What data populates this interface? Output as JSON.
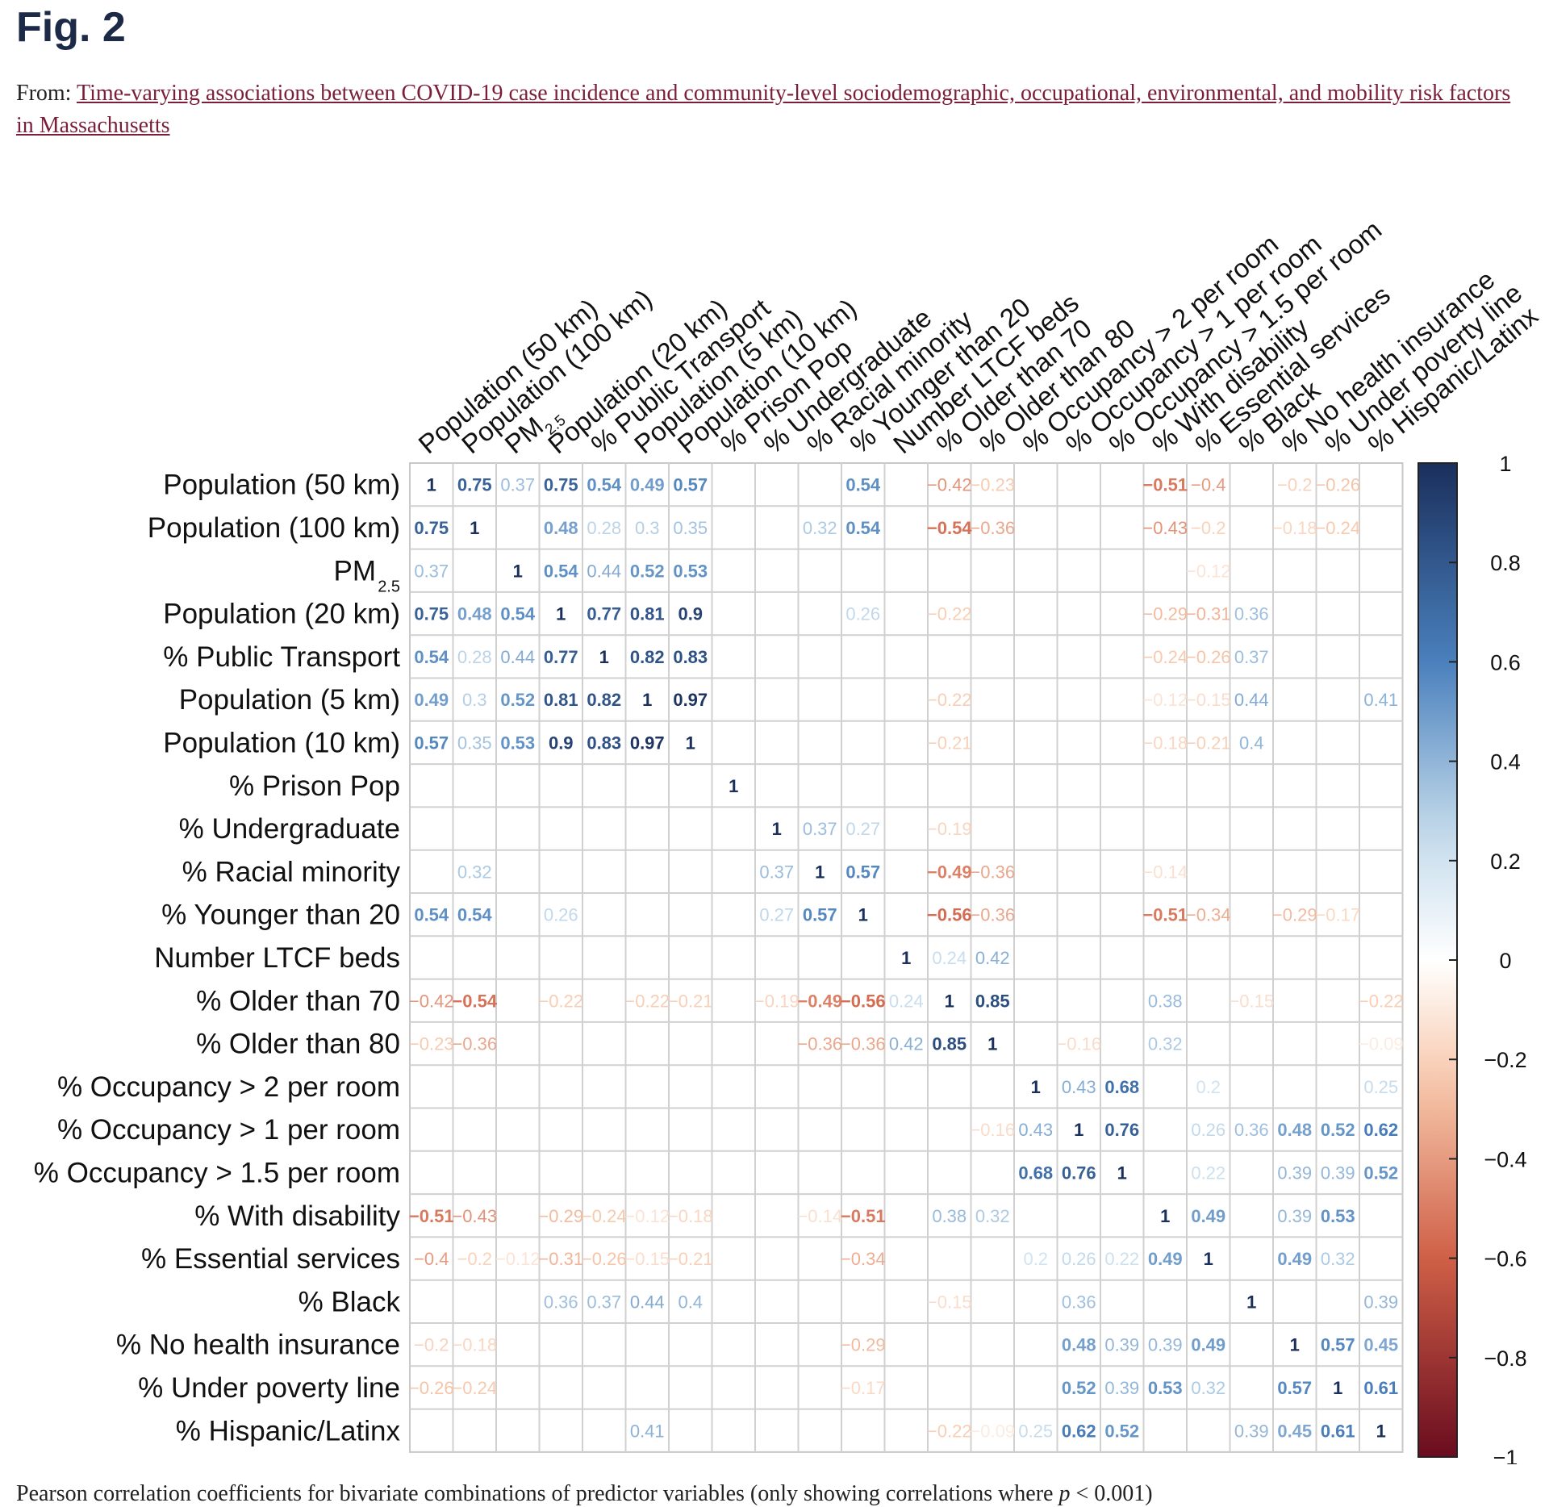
{
  "figure": {
    "title": "Fig. 2",
    "from_label": "From:",
    "article_link": "Time-varying associations between COVID-19 case incidence and community-level sociodemographic, occupational, environmental, and mobility risk factors in Massachusetts",
    "caption_pre": "Pearson correlation coefficients for bivariate combinations of predictor variables (only showing correlations where ",
    "caption_p": "p",
    "caption_post": " < 0.001)"
  },
  "chart_data": {
    "type": "heatmap",
    "variables": [
      {
        "main": "Population (50 km)",
        "sub": ""
      },
      {
        "main": "Population (100 km)",
        "sub": ""
      },
      {
        "main": "PM",
        "sub": "2.5"
      },
      {
        "main": "Population (20 km)",
        "sub": ""
      },
      {
        "main": "% Public Transport",
        "sub": ""
      },
      {
        "main": "Population (5 km)",
        "sub": ""
      },
      {
        "main": "Population (10 km)",
        "sub": ""
      },
      {
        "main": "% Prison Pop",
        "sub": ""
      },
      {
        "main": "% Undergraduate",
        "sub": ""
      },
      {
        "main": "% Racial minority",
        "sub": ""
      },
      {
        "main": "% Younger than 20",
        "sub": ""
      },
      {
        "main": "Number LTCF beds",
        "sub": ""
      },
      {
        "main": "% Older than 70",
        "sub": ""
      },
      {
        "main": "% Older than 80",
        "sub": ""
      },
      {
        "main": "% Occupancy > 2 per room",
        "sub": ""
      },
      {
        "main": "% Occupancy > 1 per room",
        "sub": ""
      },
      {
        "main": "% Occupancy > 1.5 per room",
        "sub": ""
      },
      {
        "main": "% With disability",
        "sub": ""
      },
      {
        "main": "% Essential services",
        "sub": ""
      },
      {
        "main": "% Black",
        "sub": ""
      },
      {
        "main": "% No health insurance",
        "sub": ""
      },
      {
        "main": "% Under poverty line",
        "sub": ""
      },
      {
        "main": "% Hispanic/Latinx",
        "sub": ""
      }
    ],
    "matrix": [
      [
        1,
        0.75,
        0.37,
        0.75,
        0.54,
        0.49,
        0.57,
        null,
        null,
        null,
        0.54,
        null,
        -0.42,
        -0.23,
        null,
        null,
        null,
        -0.51,
        -0.4,
        null,
        -0.2,
        -0.26,
        null
      ],
      [
        0.75,
        1,
        null,
        0.48,
        0.28,
        0.3,
        0.35,
        null,
        null,
        0.32,
        0.54,
        null,
        -0.54,
        -0.36,
        null,
        null,
        null,
        -0.43,
        -0.2,
        null,
        -0.18,
        -0.24,
        null
      ],
      [
        0.37,
        null,
        1,
        0.54,
        0.44,
        0.52,
        0.53,
        null,
        null,
        null,
        null,
        null,
        null,
        null,
        null,
        null,
        null,
        null,
        -0.12,
        null,
        null,
        null,
        null
      ],
      [
        0.75,
        0.48,
        0.54,
        1,
        0.77,
        0.81,
        0.9,
        null,
        null,
        null,
        0.26,
        null,
        -0.22,
        null,
        null,
        null,
        null,
        -0.29,
        -0.31,
        0.36,
        null,
        null,
        null
      ],
      [
        0.54,
        0.28,
        0.44,
        0.77,
        1,
        0.82,
        0.83,
        null,
        null,
        null,
        null,
        null,
        null,
        null,
        null,
        null,
        null,
        -0.24,
        -0.26,
        0.37,
        null,
        null,
        null
      ],
      [
        0.49,
        0.3,
        0.52,
        0.81,
        0.82,
        1,
        0.97,
        null,
        null,
        null,
        null,
        null,
        -0.22,
        null,
        null,
        null,
        null,
        -0.12,
        -0.15,
        0.44,
        null,
        null,
        0.41
      ],
      [
        0.57,
        0.35,
        0.53,
        0.9,
        0.83,
        0.97,
        1,
        null,
        null,
        null,
        null,
        null,
        -0.21,
        null,
        null,
        null,
        null,
        -0.18,
        -0.21,
        0.4,
        null,
        null,
        null
      ],
      [
        null,
        null,
        null,
        null,
        null,
        null,
        null,
        1,
        null,
        null,
        null,
        null,
        null,
        null,
        null,
        null,
        null,
        null,
        null,
        null,
        null,
        null,
        null
      ],
      [
        null,
        null,
        null,
        null,
        null,
        null,
        null,
        null,
        1,
        0.37,
        0.27,
        null,
        -0.19,
        null,
        null,
        null,
        null,
        null,
        null,
        null,
        null,
        null,
        null
      ],
      [
        null,
        0.32,
        null,
        null,
        null,
        null,
        null,
        null,
        0.37,
        1,
        0.57,
        null,
        -0.49,
        -0.36,
        null,
        null,
        null,
        -0.14,
        null,
        null,
        null,
        null,
        null
      ],
      [
        0.54,
        0.54,
        null,
        0.26,
        null,
        null,
        null,
        null,
        0.27,
        0.57,
        1,
        null,
        -0.56,
        -0.36,
        null,
        null,
        null,
        -0.51,
        -0.34,
        null,
        -0.29,
        -0.17,
        null
      ],
      [
        null,
        null,
        null,
        null,
        null,
        null,
        null,
        null,
        null,
        null,
        null,
        1,
        0.24,
        0.42,
        null,
        null,
        null,
        null,
        null,
        null,
        null,
        null,
        null
      ],
      [
        -0.42,
        -0.54,
        null,
        -0.22,
        null,
        -0.22,
        -0.21,
        null,
        -0.19,
        -0.49,
        -0.56,
        0.24,
        1,
        0.85,
        null,
        null,
        null,
        0.38,
        null,
        -0.15,
        null,
        null,
        -0.22
      ],
      [
        -0.23,
        -0.36,
        null,
        null,
        null,
        null,
        null,
        null,
        null,
        -0.36,
        -0.36,
        0.42,
        0.85,
        1,
        null,
        -0.16,
        null,
        0.32,
        null,
        null,
        null,
        null,
        -0.09
      ],
      [
        null,
        null,
        null,
        null,
        null,
        null,
        null,
        null,
        null,
        null,
        null,
        null,
        null,
        null,
        1,
        0.43,
        0.68,
        null,
        0.2,
        null,
        null,
        null,
        0.25
      ],
      [
        null,
        null,
        null,
        null,
        null,
        null,
        null,
        null,
        null,
        null,
        null,
        null,
        null,
        -0.16,
        0.43,
        1,
        0.76,
        null,
        0.26,
        0.36,
        0.48,
        0.52,
        0.62
      ],
      [
        null,
        null,
        null,
        null,
        null,
        null,
        null,
        null,
        null,
        null,
        null,
        null,
        null,
        null,
        0.68,
        0.76,
        1,
        null,
        0.22,
        null,
        0.39,
        0.39,
        0.52
      ],
      [
        -0.51,
        -0.43,
        null,
        -0.29,
        -0.24,
        -0.12,
        -0.18,
        null,
        null,
        -0.14,
        -0.51,
        null,
        0.38,
        0.32,
        null,
        null,
        null,
        1,
        0.49,
        null,
        0.39,
        0.53,
        null
      ],
      [
        -0.4,
        -0.2,
        -0.12,
        -0.31,
        -0.26,
        -0.15,
        -0.21,
        null,
        null,
        null,
        -0.34,
        null,
        null,
        null,
        0.2,
        0.26,
        0.22,
        0.49,
        1,
        null,
        0.49,
        0.32,
        null
      ],
      [
        null,
        null,
        null,
        0.36,
        0.37,
        0.44,
        0.4,
        null,
        null,
        null,
        null,
        null,
        -0.15,
        null,
        null,
        0.36,
        null,
        null,
        null,
        1,
        null,
        null,
        0.39
      ],
      [
        -0.2,
        -0.18,
        null,
        null,
        null,
        null,
        null,
        null,
        null,
        null,
        -0.29,
        null,
        null,
        null,
        null,
        0.48,
        0.39,
        0.39,
        0.49,
        null,
        1,
        0.57,
        0.45
      ],
      [
        -0.26,
        -0.24,
        null,
        null,
        null,
        null,
        null,
        null,
        null,
        null,
        -0.17,
        null,
        null,
        null,
        null,
        0.52,
        0.39,
        0.53,
        0.32,
        null,
        0.57,
        1,
        0.61
      ],
      [
        null,
        null,
        null,
        null,
        null,
        0.41,
        null,
        null,
        null,
        null,
        null,
        null,
        -0.22,
        -0.09,
        0.25,
        0.62,
        0.52,
        null,
        null,
        0.39,
        0.45,
        0.61,
        1
      ]
    ],
    "colorbar": {
      "range": [
        -1,
        1
      ],
      "ticks": [
        "1",
        "0.8",
        "0.6",
        "0.4",
        "0.2",
        "0",
        "−0.2",
        "−0.4",
        "−0.6",
        "−0.8",
        "−1"
      ],
      "colors": {
        "high": "#1a2f5c",
        "mid_high": "#4a80bd",
        "light_high": "#c6dcec",
        "zero": "#ffffff",
        "light_low": "#f7c7aa",
        "mid_low": "#cf6047",
        "low": "#6a0c1f"
      }
    }
  }
}
